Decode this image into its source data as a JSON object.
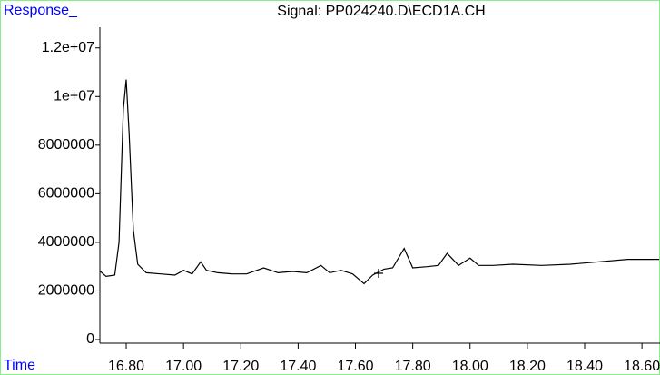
{
  "chart_data": {
    "type": "line",
    "title": "Signal: PP024240.D\\ECD1A.CH",
    "y_label": "Response_",
    "x_label": "Time",
    "color": "#000000",
    "x": [
      16.71,
      16.73,
      16.76,
      16.775,
      16.79,
      16.8,
      16.81,
      16.825,
      16.84,
      16.87,
      16.92,
      16.97,
      17.0,
      17.03,
      17.06,
      17.08,
      17.12,
      17.17,
      17.22,
      17.28,
      17.33,
      17.38,
      17.43,
      17.48,
      17.51,
      17.55,
      17.59,
      17.63,
      17.66,
      17.7,
      17.73,
      17.77,
      17.8,
      17.85,
      17.89,
      17.92,
      17.96,
      18.0,
      18.03,
      18.08,
      18.15,
      18.25,
      18.35,
      18.45,
      18.55,
      18.66
    ],
    "values": [
      2800000,
      2600000,
      2650000,
      4000000,
      9500000,
      10700000,
      8500000,
      4500000,
      3100000,
      2750000,
      2700000,
      2650000,
      2850000,
      2700000,
      3200000,
      2850000,
      2750000,
      2700000,
      2700000,
      2950000,
      2750000,
      2800000,
      2750000,
      3050000,
      2750000,
      2850000,
      2700000,
      2300000,
      2650000,
      2900000,
      2950000,
      3750000,
      2950000,
      3000000,
      3050000,
      3550000,
      3050000,
      3350000,
      3050000,
      3050000,
      3100000,
      3050000,
      3100000,
      3200000,
      3300000,
      3300000
    ],
    "xlim": [
      16.708,
      18.663
    ],
    "ylim": [
      -150000,
      12850000
    ],
    "xticks": [
      {
        "value": 16.8,
        "label": "16.80"
      },
      {
        "value": 17.0,
        "label": "17.00"
      },
      {
        "value": 17.2,
        "label": "17.20"
      },
      {
        "value": 17.4,
        "label": "17.40"
      },
      {
        "value": 17.6,
        "label": "17.60"
      },
      {
        "value": 17.8,
        "label": "17.80"
      },
      {
        "value": 18.0,
        "label": "18.00"
      },
      {
        "value": 18.2,
        "label": "18.20"
      },
      {
        "value": 18.4,
        "label": "18.40"
      },
      {
        "value": 18.6,
        "label": "18.60"
      }
    ],
    "yticks": [
      0,
      2000000,
      4000000,
      6000000,
      8000000,
      {
        "value": 10000000,
        "label": "1e+07"
      },
      {
        "value": 12000000,
        "label": "1.2e+07"
      }
    ]
  }
}
